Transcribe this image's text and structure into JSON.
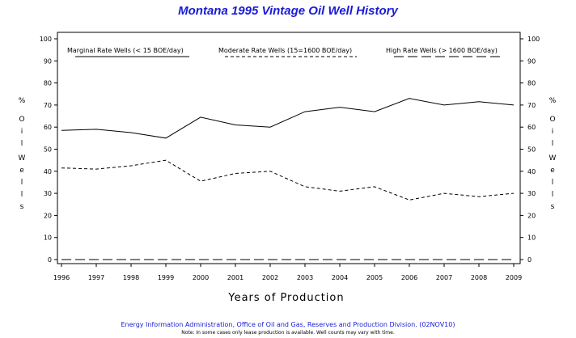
{
  "chart_data": {
    "type": "line",
    "title": "Montana 1995 Vintage Oil Well History",
    "xlabel": "Years of Production",
    "ylabel_chars": [
      "%",
      "O",
      "i",
      "l",
      "W",
      "e",
      "l",
      "l",
      "s"
    ],
    "x": [
      "1996",
      "1997",
      "1998",
      "1999",
      "2000",
      "2001",
      "2002",
      "2003",
      "2004",
      "2005",
      "2006",
      "2007",
      "2008",
      "2009"
    ],
    "ylim": [
      0,
      100
    ],
    "yticks": [
      "0",
      "10",
      "20",
      "30",
      "40",
      "50",
      "60",
      "70",
      "80",
      "90",
      "100"
    ],
    "grid": false,
    "legend_position": "top",
    "series": [
      {
        "name": "Marginal Rate Wells (<  15 BOE/day)",
        "style": "solid",
        "values": [
          58.5,
          59,
          57.5,
          55,
          64.5,
          61,
          60,
          67,
          69,
          67,
          73,
          70,
          71.5,
          70
        ]
      },
      {
        "name": "Moderate Rate Wells (15=1600 BOE/day)",
        "style": "dashed",
        "values": [
          41.5,
          41,
          42.5,
          45,
          35.5,
          39,
          40,
          33,
          31,
          33,
          27,
          30,
          28.5,
          30
        ]
      },
      {
        "name": "High Rate Wells (> 1600 BOE/day)",
        "style": "longdash",
        "values": [
          0,
          0,
          0,
          0,
          0,
          0,
          0,
          0,
          0,
          0,
          0,
          0,
          0,
          0
        ]
      }
    ]
  },
  "footer": {
    "source": "Energy Information Administration, Office of Oil and Gas, Reserves and Production Division. (02NOV10)",
    "note": "Note: In some cases only lease production is available. Well counts may vary with time."
  },
  "colors": {
    "title": "#1a1ad6",
    "footer": "#1a1ad6",
    "lines": "#000000"
  }
}
